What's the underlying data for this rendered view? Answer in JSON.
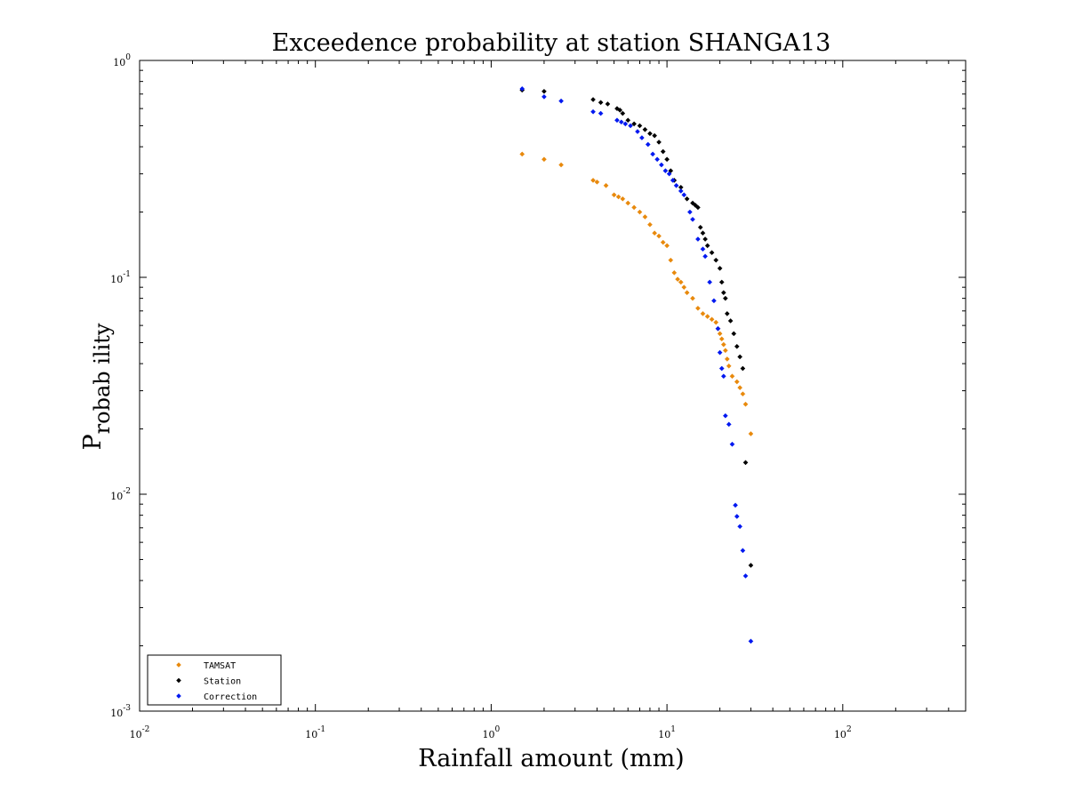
{
  "chart_data": {
    "type": "scatter",
    "title": "Exceedence probability at station SHANGA13",
    "xlabel": "Rainfall amount (mm)",
    "ylabel": {
      "main": "P",
      "sub": "robab ility"
    },
    "x_scale": "log",
    "y_scale": "log",
    "xlim": [
      0.01,
      500
    ],
    "ylim": [
      0.001,
      1
    ],
    "x_ticks": [
      {
        "value": 0.01,
        "base": "10",
        "exp": "-2"
      },
      {
        "value": 0.1,
        "base": "10",
        "exp": "-1"
      },
      {
        "value": 1,
        "base": "10",
        "exp": "0"
      },
      {
        "value": 10,
        "base": "10",
        "exp": "1"
      },
      {
        "value": 100,
        "base": "10",
        "exp": "2"
      }
    ],
    "y_ticks": [
      {
        "value": 0.001,
        "base": "10",
        "exp": "-3"
      },
      {
        "value": 0.01,
        "base": "10",
        "exp": "-2"
      },
      {
        "value": 0.1,
        "base": "10",
        "exp": "-1"
      },
      {
        "value": 1,
        "base": "10",
        "exp": "0"
      }
    ],
    "grid": false,
    "legend_position": "bottom-left",
    "series": [
      {
        "name": "TAMSAT",
        "color": "#e8890c",
        "points": [
          [
            1.5,
            0.37
          ],
          [
            2.0,
            0.35
          ],
          [
            2.5,
            0.33
          ],
          [
            3.8,
            0.28
          ],
          [
            4.0,
            0.275
          ],
          [
            4.5,
            0.265
          ],
          [
            5.0,
            0.24
          ],
          [
            5.3,
            0.235
          ],
          [
            5.6,
            0.23
          ],
          [
            6.0,
            0.22
          ],
          [
            6.5,
            0.21
          ],
          [
            7.0,
            0.2
          ],
          [
            7.5,
            0.19
          ],
          [
            8.0,
            0.175
          ],
          [
            8.5,
            0.16
          ],
          [
            9.0,
            0.155
          ],
          [
            9.5,
            0.145
          ],
          [
            10.0,
            0.14
          ],
          [
            10.5,
            0.12
          ],
          [
            11.0,
            0.105
          ],
          [
            11.5,
            0.098
          ],
          [
            12.0,
            0.095
          ],
          [
            12.5,
            0.09
          ],
          [
            13.0,
            0.085
          ],
          [
            14.0,
            0.08
          ],
          [
            15.0,
            0.072
          ],
          [
            16.0,
            0.068
          ],
          [
            17.0,
            0.066
          ],
          [
            18.0,
            0.064
          ],
          [
            19.0,
            0.062
          ],
          [
            19.5,
            0.058
          ],
          [
            20.0,
            0.055
          ],
          [
            20.5,
            0.052
          ],
          [
            21.0,
            0.049
          ],
          [
            21.5,
            0.046
          ],
          [
            22.0,
            0.042
          ],
          [
            22.5,
            0.039
          ],
          [
            23.5,
            0.035
          ],
          [
            25.0,
            0.033
          ],
          [
            26.0,
            0.031
          ],
          [
            27.0,
            0.029
          ],
          [
            28.0,
            0.026
          ],
          [
            30.0,
            0.019
          ]
        ]
      },
      {
        "name": "Station",
        "color": "#000000",
        "points": [
          [
            1.5,
            0.73
          ],
          [
            2.0,
            0.72
          ],
          [
            3.8,
            0.66
          ],
          [
            4.2,
            0.64
          ],
          [
            4.6,
            0.63
          ],
          [
            5.2,
            0.6
          ],
          [
            5.4,
            0.59
          ],
          [
            5.6,
            0.57
          ],
          [
            6.0,
            0.53
          ],
          [
            6.5,
            0.51
          ],
          [
            7.0,
            0.5
          ],
          [
            7.5,
            0.48
          ],
          [
            8.0,
            0.46
          ],
          [
            8.5,
            0.45
          ],
          [
            9.0,
            0.42
          ],
          [
            9.5,
            0.38
          ],
          [
            10.0,
            0.35
          ],
          [
            10.5,
            0.31
          ],
          [
            11.0,
            0.28
          ],
          [
            12.0,
            0.26
          ],
          [
            13.0,
            0.23
          ],
          [
            14.0,
            0.22
          ],
          [
            14.5,
            0.215
          ],
          [
            15.0,
            0.21
          ],
          [
            15.5,
            0.17
          ],
          [
            16.0,
            0.16
          ],
          [
            16.5,
            0.15
          ],
          [
            17.0,
            0.14
          ],
          [
            18.0,
            0.13
          ],
          [
            19.0,
            0.12
          ],
          [
            20.0,
            0.11
          ],
          [
            20.5,
            0.095
          ],
          [
            21.0,
            0.085
          ],
          [
            21.5,
            0.08
          ],
          [
            22.0,
            0.068
          ],
          [
            23.0,
            0.063
          ],
          [
            24.0,
            0.055
          ],
          [
            25.0,
            0.048
          ],
          [
            26.0,
            0.043
          ],
          [
            27.0,
            0.038
          ],
          [
            28.0,
            0.014
          ],
          [
            30.0,
            0.0047
          ]
        ]
      },
      {
        "name": "Correction",
        "color": "#0018f0",
        "points": [
          [
            1.5,
            0.74
          ],
          [
            2.0,
            0.68
          ],
          [
            2.5,
            0.65
          ],
          [
            3.8,
            0.58
          ],
          [
            4.2,
            0.57
          ],
          [
            5.2,
            0.53
          ],
          [
            5.5,
            0.52
          ],
          [
            5.8,
            0.51
          ],
          [
            6.2,
            0.5
          ],
          [
            6.8,
            0.47
          ],
          [
            7.2,
            0.44
          ],
          [
            7.8,
            0.41
          ],
          [
            8.3,
            0.37
          ],
          [
            8.8,
            0.35
          ],
          [
            9.3,
            0.33
          ],
          [
            9.8,
            0.31
          ],
          [
            10.3,
            0.3
          ],
          [
            10.8,
            0.28
          ],
          [
            11.3,
            0.265
          ],
          [
            12.0,
            0.25
          ],
          [
            12.5,
            0.24
          ],
          [
            13.5,
            0.2
          ],
          [
            14.0,
            0.185
          ],
          [
            15.0,
            0.15
          ],
          [
            16.0,
            0.135
          ],
          [
            16.5,
            0.125
          ],
          [
            17.5,
            0.095
          ],
          [
            18.5,
            0.078
          ],
          [
            19.5,
            0.058
          ],
          [
            20.0,
            0.045
          ],
          [
            20.5,
            0.038
          ],
          [
            21.0,
            0.035
          ],
          [
            21.5,
            0.023
          ],
          [
            22.5,
            0.021
          ],
          [
            23.5,
            0.017
          ],
          [
            24.5,
            0.0089
          ],
          [
            25.0,
            0.0079
          ],
          [
            26.0,
            0.0071
          ],
          [
            27.0,
            0.0055
          ],
          [
            28.0,
            0.0042
          ],
          [
            30.0,
            0.0021
          ]
        ]
      }
    ]
  }
}
